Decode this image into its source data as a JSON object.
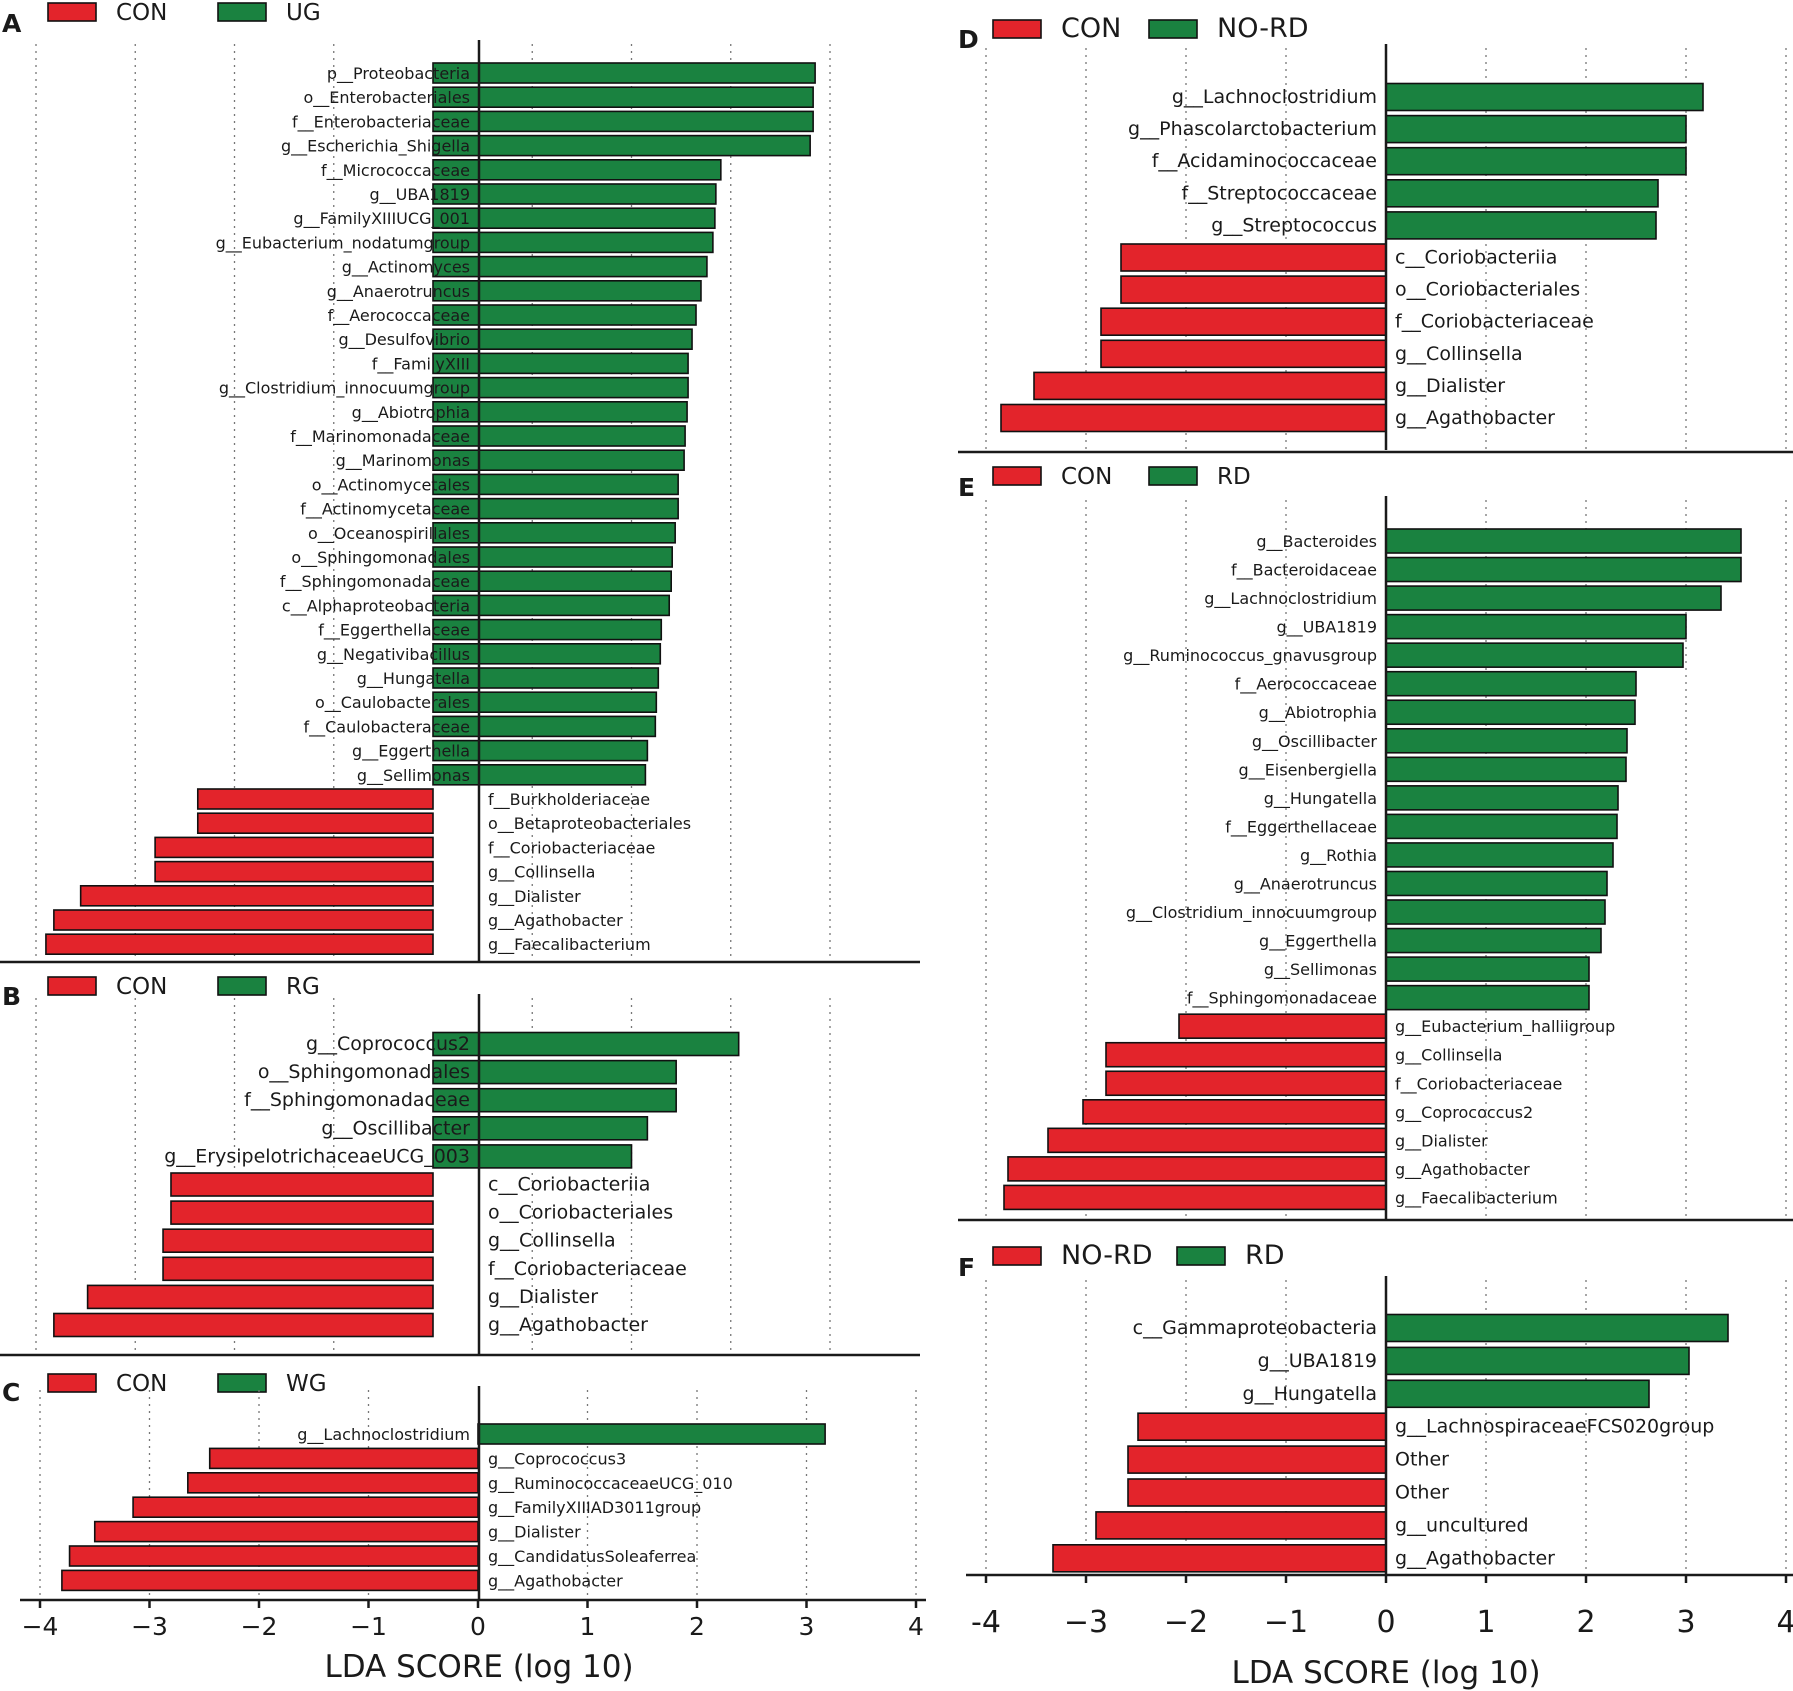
{
  "colors": {
    "neg": "#e3242b",
    "pos": "#1a8240"
  },
  "xlabel": "LDA SCORE (log 10)",
  "chart_data": [
    {
      "type": "bar",
      "orientation": "horizontal",
      "panel": "A",
      "xlim": [
        -4,
        4
      ],
      "ticks": [
        -4,
        -3,
        -2,
        -1,
        0,
        1,
        2,
        3,
        4
      ],
      "show_ticks": false,
      "legend": [
        {
          "label": "CON",
          "color": "#e3242b"
        },
        {
          "label": "UG",
          "color": "#1a8240"
        }
      ],
      "categories": [
        "p__Proteobacteria",
        "o__Enterobacteriales",
        "f__Enterobacteriaceae",
        "g__Escherichia_Shigella",
        "f__Micrococcaceae",
        "g__UBA1819",
        "g__FamilyXIIIUCG_001",
        "g__Eubacterium_nodatumgroup",
        "g__Actinomyces",
        "g__Anaerotruncus",
        "f__Aerococcaceae",
        "g__Desulfovibrio",
        "f__FamilyXIII",
        "g__Clostridium_innocuumgroup",
        "g__Abiotrophia",
        "f__Marinomonadaceae",
        "g__Marinomonas",
        "o__Actinomycetales",
        "f__Actinomycetaceae",
        "o__Oceanospirillales",
        "o__Sphingomonadales",
        "f__Sphingomonadaceae",
        "c__Alphaproteobacteria",
        "f__Eggerthellaceae",
        "g__Negativibacillus",
        "g__Hungatella",
        "o__Caulobacterales",
        "f__Caulobacteraceae",
        "g__Eggerthella",
        "g__Sellimonas",
        "f__Burkholderiaceae",
        "o__Betaproteobacteriales",
        "f__Coriobacteriaceae",
        "g__Collinsella",
        "g__Dialister",
        "g__Agathobacter",
        "g__Faecalibacterium"
      ],
      "values": [
        3.85,
        3.83,
        3.83,
        3.8,
        2.9,
        2.85,
        2.84,
        2.82,
        2.76,
        2.7,
        2.65,
        2.61,
        2.57,
        2.57,
        2.56,
        2.54,
        2.53,
        2.47,
        2.47,
        2.44,
        2.41,
        2.4,
        2.38,
        2.3,
        2.29,
        2.27,
        2.25,
        2.24,
        2.16,
        2.14,
        -2.37,
        -2.37,
        -2.8,
        -2.8,
        -3.55,
        -3.82,
        -3.9
      ]
    },
    {
      "type": "bar",
      "orientation": "horizontal",
      "panel": "B",
      "xlim": [
        -4,
        4
      ],
      "ticks": [
        -4,
        -3,
        -2,
        -1,
        0,
        1,
        2,
        3,
        4
      ],
      "show_ticks": false,
      "legend": [
        {
          "label": "CON",
          "color": "#e3242b"
        },
        {
          "label": "RG",
          "color": "#1a8240"
        }
      ],
      "categories": [
        "g__Coprococcus2",
        "o__Sphingomonadales",
        "f__Sphingomonadaceae",
        "g__Oscillibacter",
        "g__ErysipelotrichaceaeUCG_003",
        "c__Coriobacteriia",
        "o__Coriobacteriales",
        "g__Collinsella",
        "f__Coriobacteriaceae",
        "g__Dialister",
        "g__Agathobacter"
      ],
      "values": [
        3.08,
        2.45,
        2.45,
        2.16,
        2.0,
        -2.64,
        -2.64,
        -2.72,
        -2.72,
        -3.48,
        -3.82
      ]
    },
    {
      "type": "bar",
      "orientation": "horizontal",
      "panel": "C",
      "xlim": [
        -4,
        4
      ],
      "ticks": [
        -4,
        -3,
        -2,
        -1,
        0,
        1,
        2,
        3,
        4
      ],
      "show_ticks": true,
      "tick_labels": [
        "−4",
        "−3",
        "−2",
        "−1",
        "0",
        "1",
        "2",
        "3",
        "4"
      ],
      "legend": [
        {
          "label": "CON",
          "color": "#e3242b"
        },
        {
          "label": "WG",
          "color": "#1a8240"
        }
      ],
      "categories": [
        "g__Lachnoclostridium",
        "g__Coprococcus3",
        "g__RuminococcaceaeUCG_010",
        "g__FamilyXIIIAD3011group",
        "g__Dialister",
        "g__CandidatusSoleaferrea",
        "g__Agathobacter"
      ],
      "values": [
        3.17,
        -2.45,
        -2.65,
        -3.15,
        -3.5,
        -3.73,
        -3.8
      ]
    },
    {
      "type": "bar",
      "orientation": "horizontal",
      "panel": "D",
      "xlim": [
        -4,
        4
      ],
      "ticks": [
        -4,
        -3,
        -2,
        -1,
        0,
        1,
        2,
        3,
        4
      ],
      "show_ticks": false,
      "legend": [
        {
          "label": "CON",
          "color": "#e3242b"
        },
        {
          "label": "NO-RD",
          "color": "#1a8240"
        }
      ],
      "categories": [
        "g__Lachnoclostridium",
        "g__Phascolarctobacterium",
        "f__Acidaminococcaceae",
        "f__Streptococcaceae",
        "g__Streptococcus",
        "c__Coriobacteriia",
        "o__Coriobacteriales",
        "f__Coriobacteriaceae",
        "g__Collinsella",
        "g__Dialister",
        "g__Agathobacter"
      ],
      "values": [
        3.17,
        3.0,
        3.0,
        2.72,
        2.7,
        -2.65,
        -2.65,
        -2.85,
        -2.85,
        -3.52,
        -3.85
      ]
    },
    {
      "type": "bar",
      "orientation": "horizontal",
      "panel": "E",
      "xlim": [
        -4,
        4
      ],
      "ticks": [
        -4,
        -3,
        -2,
        -1,
        0,
        1,
        2,
        3,
        4
      ],
      "show_ticks": false,
      "legend": [
        {
          "label": "CON",
          "color": "#e3242b"
        },
        {
          "label": "RD",
          "color": "#1a8240"
        }
      ],
      "categories": [
        "g__Bacteroides",
        "f__Bacteroidaceae",
        "g__Lachnoclostridium",
        "g__UBA1819",
        "g__Ruminococcus_gnavusgroup",
        "f__Aerococcaceae",
        "g__Abiotrophia",
        "g__Oscillibacter",
        "g__Eisenbergiella",
        "g__Hungatella",
        "f__Eggerthellaceae",
        "g__Rothia",
        "g__Anaerotruncus",
        "g__Clostridium_innocuumgroup",
        "g__Eggerthella",
        "g__Sellimonas",
        "f__Sphingomonadaceae",
        "g__Eubacterium_halliigroup",
        "g__Collinsella",
        "f__Coriobacteriaceae",
        "g__Coprococcus2",
        "g__Dialister",
        "g__Agathobacter",
        "g__Faecalibacterium"
      ],
      "values": [
        3.55,
        3.55,
        3.35,
        3.0,
        2.97,
        2.5,
        2.49,
        2.41,
        2.4,
        2.32,
        2.31,
        2.27,
        2.21,
        2.19,
        2.15,
        2.03,
        2.03,
        -2.07,
        -2.8,
        -2.8,
        -3.03,
        -3.38,
        -3.78,
        -3.82
      ]
    },
    {
      "type": "bar",
      "orientation": "horizontal",
      "panel": "F",
      "xlim": [
        -4,
        4
      ],
      "ticks": [
        -4,
        -3,
        -2,
        -1,
        0,
        1,
        2,
        3,
        4
      ],
      "show_ticks": true,
      "tick_labels": [
        "-4",
        "−3",
        "−2",
        "−1",
        "0",
        "1",
        "2",
        "3",
        "4"
      ],
      "legend": [
        {
          "label": "NO-RD",
          "color": "#e3242b"
        },
        {
          "label": "RD",
          "color": "#1a8240"
        }
      ],
      "categories": [
        "c__Gammaproteobacteria",
        "g__UBA1819",
        "g__Hungatella",
        "g__LachnospiraceaeFCS020group",
        "Other",
        "Other",
        "g__uncultured",
        "g__Agathobacter"
      ],
      "values": [
        3.42,
        3.03,
        2.63,
        -2.48,
        -2.58,
        -2.58,
        -2.9,
        -3.33
      ]
    }
  ]
}
